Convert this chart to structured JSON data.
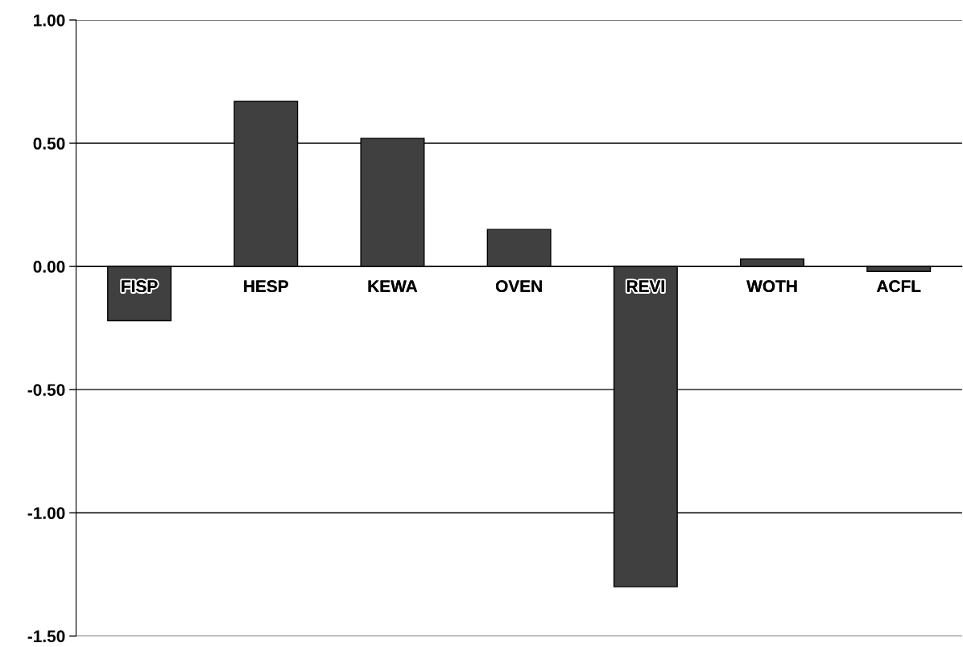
{
  "chart_data": {
    "type": "bar",
    "categories": [
      "FISP",
      "HESP",
      "KEWA",
      "OVEN",
      "REVI",
      "WOTH",
      "ACFL"
    ],
    "values": [
      -0.22,
      0.67,
      0.52,
      0.15,
      -1.3,
      0.03,
      -0.02
    ],
    "color": "#404040",
    "ylim": [
      -1.5,
      1.0
    ],
    "yticks": [
      {
        "value": -1.5,
        "label": "-1.50"
      },
      {
        "value": -1.0,
        "label": "-1.00"
      },
      {
        "value": -0.5,
        "label": "-0.50"
      },
      {
        "value": 0.0,
        "label": "0.00"
      },
      {
        "value": 0.5,
        "label": "0.50"
      },
      {
        "value": 1.0,
        "label": "1.00"
      }
    ],
    "grid": "y",
    "legend": false
  }
}
